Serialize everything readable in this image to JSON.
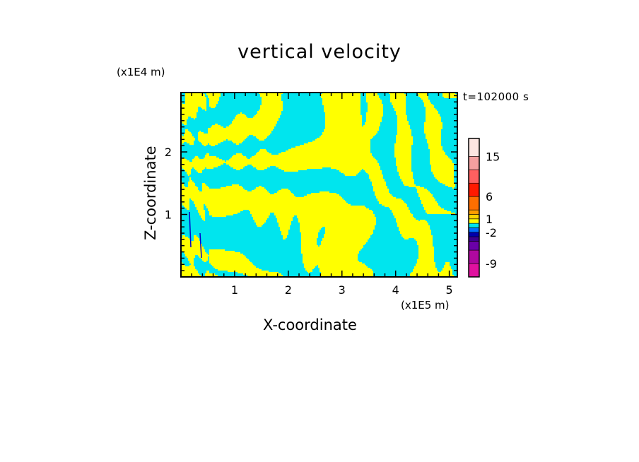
{
  "chart_data": {
    "type": "heatmap",
    "title": "vertical velocity",
    "xlabel": "X-coordinate",
    "ylabel": "Z-coordinate",
    "x_unit_label": "(x1E5 m)",
    "y_unit_label": "(x1E4 m)",
    "time_label": "t=102000 s",
    "xlim": [
      0,
      5.15
    ],
    "ylim": [
      0,
      2.95
    ],
    "x_ticks": [
      1,
      2,
      3,
      4,
      5
    ],
    "y_ticks": [
      1,
      2
    ],
    "field_colors": {
      "positive": "#ffff00",
      "negative": "#00e5ee",
      "strong_negative": "#0000cc"
    },
    "colorbar": {
      "labels": [
        "15",
        "6",
        "1",
        "-2",
        "-9"
      ],
      "label_levels": [
        15,
        6,
        1,
        -2,
        -9
      ],
      "bands": [
        {
          "min": -12,
          "max": -9,
          "color": "#e0119f"
        },
        {
          "min": -9,
          "max": -6,
          "color": "#b0089f"
        },
        {
          "min": -6,
          "max": -4,
          "color": "#6a00a8"
        },
        {
          "min": -4,
          "max": -3,
          "color": "#3a008f"
        },
        {
          "min": -3,
          "max": -2,
          "color": "#0000aa"
        },
        {
          "min": -2,
          "max": -1,
          "color": "#0070ff"
        },
        {
          "min": -1,
          "max": 0,
          "color": "#00e5ee"
        },
        {
          "min": 0,
          "max": 1,
          "color": "#ffff00"
        },
        {
          "min": 1,
          "max": 2,
          "color": "#ffd400"
        },
        {
          "min": 2,
          "max": 3,
          "color": "#ff9e00"
        },
        {
          "min": 3,
          "max": 6,
          "color": "#ff6e00"
        },
        {
          "min": 6,
          "max": 9,
          "color": "#ff1a00"
        },
        {
          "min": 9,
          "max": 12,
          "color": "#ff6060"
        },
        {
          "min": 12,
          "max": 15,
          "color": "#f4a0a0"
        },
        {
          "min": 15,
          "max": 19,
          "color": "#fde6e2"
        }
      ]
    }
  }
}
